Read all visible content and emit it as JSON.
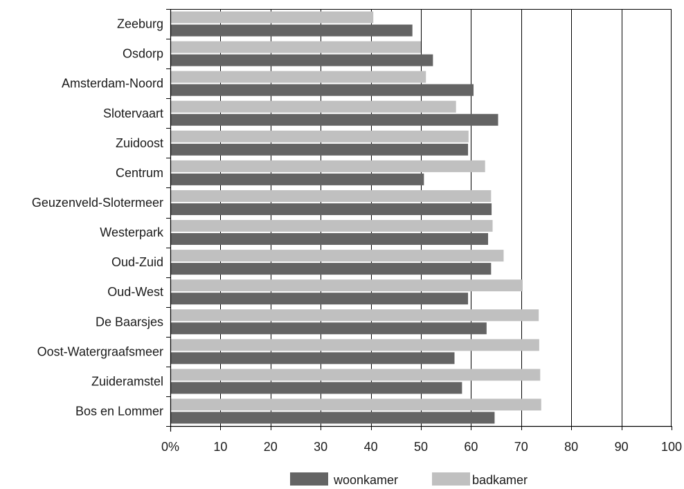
{
  "chart_data": {
    "type": "bar",
    "orientation": "horizontal",
    "title": "",
    "xlabel": "",
    "ylabel": "",
    "xlim": [
      0,
      100
    ],
    "grid": true,
    "legend_position": "bottom",
    "tick_labels": [
      "0%",
      "10",
      "20",
      "30",
      "40",
      "50",
      "60",
      "70",
      "80",
      "90",
      "100"
    ],
    "categories": [
      "Zeeburg",
      "Osdorp",
      "Amsterdam-Noord",
      "Slotervaart",
      "Zuidoost",
      "Centrum",
      "Geuzenveld-Slotermeer",
      "Westerpark",
      "Oud-Zuid",
      "Oud-West",
      "De Baarsjes",
      "Oost-Watergraafsmeer",
      "Zuideramstel",
      "Bos en Lommer"
    ],
    "series": [
      {
        "name": "badkamer",
        "color": "#c0c0c0",
        "values": [
          40.5,
          50.0,
          51.0,
          57.0,
          59.5,
          62.8,
          64.0,
          64.3,
          66.5,
          70.3,
          73.5,
          73.6,
          73.8,
          74.0
        ]
      },
      {
        "name": "woonkamer",
        "color": "#646464",
        "values": [
          48.3,
          52.4,
          60.5,
          65.4,
          59.4,
          50.6,
          64.1,
          63.4,
          64.0,
          59.4,
          63.1,
          56.7,
          58.2,
          64.7
        ]
      }
    ],
    "legend": [
      {
        "name": "woonkamer",
        "color": "#646464"
      },
      {
        "name": "badkamer",
        "color": "#c0c0c0"
      }
    ]
  }
}
